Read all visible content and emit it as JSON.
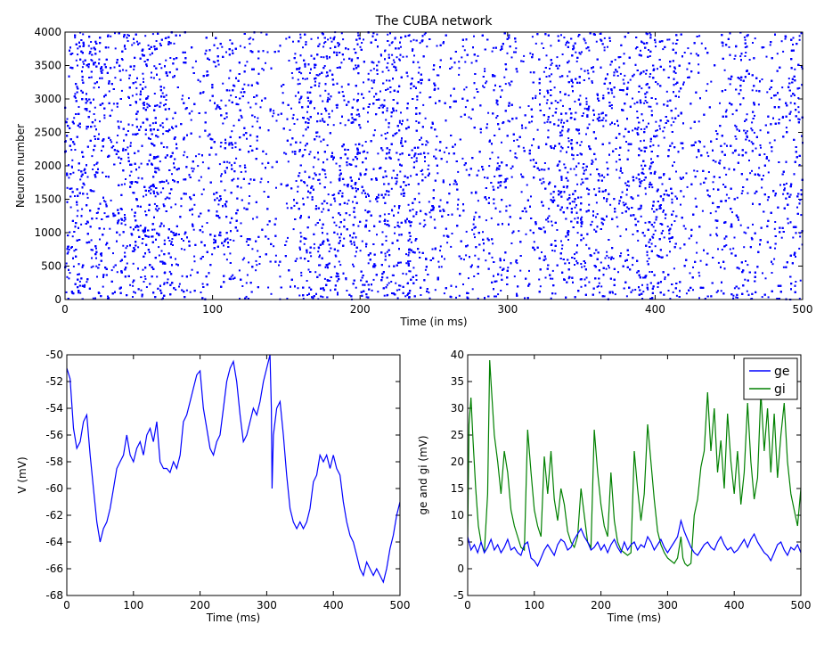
{
  "chart_data": [
    {
      "id": "raster",
      "type": "scatter",
      "title": "The CUBA network",
      "xlabel": "Time (in ms)",
      "ylabel": "Neuron number",
      "xlim": [
        0,
        500
      ],
      "ylim": [
        0,
        4000
      ],
      "xticks": [
        0,
        100,
        200,
        300,
        400,
        500
      ],
      "yticks": [
        0,
        500,
        1000,
        1500,
        2000,
        2500,
        3000,
        3500,
        4000
      ],
      "grid": false,
      "marker_color": "#0000ff",
      "approx_spike_count": 16000
    },
    {
      "id": "membrane",
      "type": "line",
      "xlabel": "Time (ms)",
      "ylabel": "V (mV)",
      "xlim": [
        0,
        500
      ],
      "ylim": [
        -68,
        -50
      ],
      "xticks": [
        0,
        100,
        200,
        300,
        400,
        500
      ],
      "yticks": [
        -68,
        -66,
        -64,
        -62,
        -60,
        -58,
        -56,
        -54,
        -52,
        -50
      ],
      "grid": false,
      "series": [
        {
          "color": "#0000ff",
          "x": [
            0,
            5,
            10,
            15,
            20,
            25,
            30,
            35,
            40,
            45,
            50,
            55,
            60,
            65,
            70,
            75,
            80,
            85,
            90,
            95,
            100,
            105,
            110,
            115,
            120,
            125,
            130,
            135,
            140,
            145,
            150,
            155,
            160,
            165,
            170,
            175,
            180,
            185,
            190,
            195,
            200,
            205,
            210,
            215,
            220,
            225,
            230,
            235,
            240,
            245,
            250,
            255,
            260,
            265,
            270,
            275,
            280,
            285,
            290,
            295,
            300,
            305,
            307,
            308,
            310,
            315,
            320,
            325,
            330,
            335,
            340,
            345,
            350,
            355,
            360,
            365,
            370,
            375,
            380,
            385,
            390,
            395,
            400,
            405,
            410,
            415,
            420,
            425,
            430,
            435,
            440,
            445,
            450,
            455,
            460,
            465,
            470,
            475,
            480,
            485,
            490,
            495,
            500
          ],
          "y": [
            -51.0,
            -51.8,
            -55.5,
            -57.0,
            -56.5,
            -55.0,
            -54.5,
            -57.5,
            -60.0,
            -62.5,
            -64.0,
            -63.0,
            -62.5,
            -61.5,
            -60.0,
            -58.5,
            -58.0,
            -57.5,
            -56.0,
            -57.5,
            -58.0,
            -57.0,
            -56.5,
            -57.5,
            -56.0,
            -55.5,
            -56.5,
            -55.0,
            -58.0,
            -58.5,
            -58.5,
            -58.8,
            -58.0,
            -58.5,
            -57.5,
            -55.0,
            -54.5,
            -53.5,
            -52.5,
            -51.5,
            -51.2,
            -54.0,
            -55.5,
            -57.0,
            -57.5,
            -56.5,
            -56.0,
            -54.0,
            -52.0,
            -51.0,
            -50.5,
            -52.0,
            -54.5,
            -56.5,
            -56.0,
            -55.0,
            -54.0,
            -54.5,
            -53.5,
            -52.0,
            -51.0,
            -50.0,
            -54.0,
            -60.0,
            -56.0,
            -54.0,
            -53.5,
            -56.0,
            -59.0,
            -61.5,
            -62.5,
            -63.0,
            -62.5,
            -63.0,
            -62.5,
            -61.5,
            -59.5,
            -59.0,
            -57.5,
            -58.0,
            -57.5,
            -58.5,
            -57.5,
            -58.5,
            -59.0,
            -61.0,
            -62.5,
            -63.5,
            -64.0,
            -65.0,
            -66.0,
            -66.5,
            -65.5,
            -66.0,
            -66.5,
            -66.0,
            -66.5,
            -67.0,
            -66.0,
            -64.5,
            -63.5,
            -62.0,
            -61.0
          ]
        }
      ]
    },
    {
      "id": "conductance",
      "type": "line",
      "xlabel": "Time (ms)",
      "ylabel": "ge and gi (mV)",
      "xlim": [
        0,
        500
      ],
      "ylim": [
        -5,
        40
      ],
      "xticks": [
        0,
        100,
        200,
        300,
        400,
        500
      ],
      "yticks": [
        -5,
        0,
        5,
        10,
        15,
        20,
        25,
        30,
        35,
        40
      ],
      "grid": false,
      "legend": "top-right",
      "series": [
        {
          "name": "ge",
          "color": "#0000ff",
          "x": [
            0,
            5,
            10,
            15,
            20,
            25,
            30,
            35,
            40,
            45,
            50,
            55,
            60,
            65,
            70,
            75,
            80,
            85,
            90,
            95,
            100,
            105,
            110,
            115,
            120,
            125,
            130,
            135,
            140,
            145,
            150,
            155,
            160,
            165,
            170,
            175,
            180,
            185,
            190,
            195,
            200,
            205,
            210,
            215,
            220,
            225,
            230,
            235,
            240,
            245,
            250,
            255,
            260,
            265,
            270,
            275,
            280,
            285,
            290,
            295,
            300,
            305,
            310,
            315,
            320,
            325,
            330,
            335,
            340,
            345,
            350,
            355,
            360,
            365,
            370,
            375,
            380,
            385,
            390,
            395,
            400,
            405,
            410,
            415,
            420,
            425,
            430,
            435,
            440,
            445,
            450,
            455,
            460,
            465,
            470,
            475,
            480,
            485,
            490,
            495,
            500
          ],
          "y": [
            6.0,
            3.5,
            4.5,
            3.0,
            5.0,
            3.0,
            4.0,
            5.5,
            3.5,
            4.5,
            3.0,
            4.0,
            5.5,
            3.5,
            4.0,
            3.0,
            2.5,
            4.5,
            5.0,
            2.0,
            1.5,
            0.5,
            2.0,
            3.5,
            4.5,
            3.5,
            2.5,
            4.5,
            5.5,
            5.0,
            3.5,
            4.0,
            5.5,
            6.5,
            7.5,
            6.0,
            5.0,
            3.5,
            4.0,
            5.0,
            3.5,
            4.5,
            3.0,
            4.5,
            5.5,
            4.0,
            3.0,
            5.0,
            3.5,
            4.5,
            5.0,
            3.5,
            4.5,
            4.0,
            6.0,
            5.0,
            3.5,
            4.5,
            5.5,
            4.0,
            3.0,
            4.0,
            5.0,
            6.0,
            9.0,
            7.0,
            5.5,
            4.0,
            3.0,
            2.5,
            3.5,
            4.5,
            5.0,
            4.0,
            3.5,
            5.0,
            6.0,
            4.5,
            3.5,
            4.0,
            3.0,
            3.5,
            4.5,
            5.5,
            4.0,
            5.5,
            6.5,
            5.0,
            4.0,
            3.0,
            2.5,
            1.5,
            3.0,
            4.5,
            5.0,
            3.5,
            2.5,
            4.0,
            3.5,
            4.5,
            3.0
          ]
        },
        {
          "name": "gi",
          "color": "#008000",
          "x": [
            0,
            2,
            5,
            8,
            12,
            16,
            20,
            25,
            30,
            33,
            36,
            40,
            45,
            50,
            55,
            60,
            65,
            70,
            75,
            80,
            85,
            90,
            95,
            100,
            105,
            110,
            115,
            120,
            125,
            130,
            135,
            140,
            145,
            150,
            155,
            160,
            165,
            170,
            175,
            180,
            185,
            190,
            195,
            200,
            205,
            210,
            215,
            220,
            225,
            230,
            235,
            240,
            245,
            250,
            255,
            260,
            265,
            270,
            275,
            280,
            285,
            290,
            295,
            300,
            305,
            310,
            315,
            320,
            323,
            326,
            330,
            335,
            340,
            345,
            350,
            355,
            360,
            365,
            370,
            375,
            380,
            385,
            390,
            395,
            400,
            405,
            410,
            415,
            420,
            425,
            430,
            435,
            440,
            445,
            450,
            455,
            460,
            465,
            470,
            475,
            480,
            485,
            490,
            495,
            500
          ],
          "y": [
            6.0,
            27.0,
            32.0,
            24.0,
            15.0,
            8.0,
            5.0,
            3.0,
            14.0,
            39.0,
            33.0,
            25.0,
            20.0,
            14.0,
            22.0,
            18.0,
            11.0,
            8.0,
            6.0,
            4.0,
            3.5,
            26.0,
            18.0,
            11.0,
            8.0,
            6.0,
            21.0,
            14.0,
            22.0,
            13.0,
            9.0,
            15.0,
            12.0,
            7.0,
            5.0,
            4.0,
            6.0,
            15.0,
            10.0,
            5.0,
            4.0,
            26.0,
            18.0,
            12.0,
            8.0,
            6.0,
            18.0,
            9.0,
            5.0,
            3.5,
            3.0,
            2.5,
            3.0,
            22.0,
            15.0,
            9.0,
            14.0,
            27.0,
            20.0,
            13.0,
            7.0,
            4.5,
            3.0,
            2.0,
            1.5,
            1.0,
            2.0,
            6.0,
            2.0,
            1.0,
            0.5,
            1.0,
            10.0,
            13.0,
            19.0,
            22.0,
            33.0,
            22.0,
            30.0,
            18.0,
            24.0,
            15.0,
            29.0,
            20.0,
            14.0,
            22.0,
            12.0,
            18.0,
            31.0,
            20.0,
            13.0,
            17.0,
            33.0,
            22.0,
            30.0,
            18.0,
            29.0,
            17.0,
            25.0,
            31.0,
            20.0,
            14.0,
            11.0,
            8.0,
            15.0
          ]
        }
      ]
    }
  ]
}
